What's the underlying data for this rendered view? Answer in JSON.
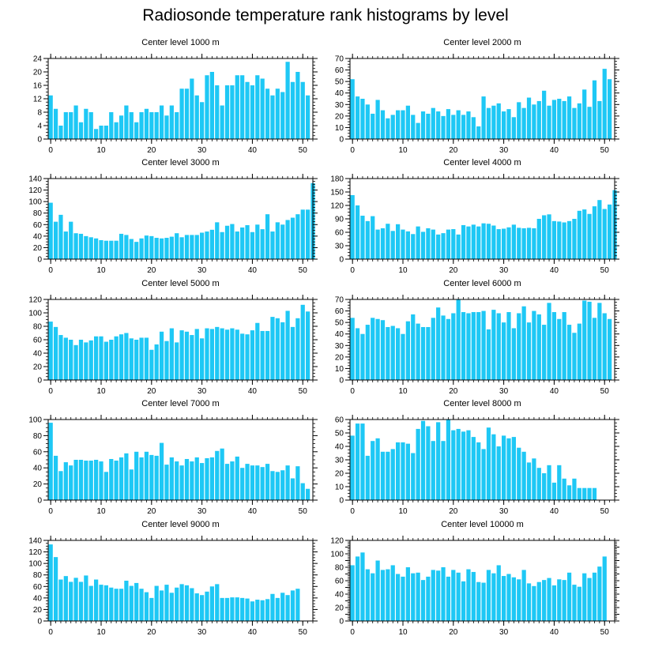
{
  "title": "Radiosonde temperature rank histograms by level",
  "colors": {
    "bar": "#1EC8F5",
    "axis": "#000000"
  },
  "chart_data": [
    {
      "type": "bar",
      "title": "Center level 1000 m",
      "xlim": [
        -0.5,
        52
      ],
      "ylim": [
        0,
        24
      ],
      "xticks": [
        0,
        10,
        20,
        30,
        40,
        50
      ],
      "yticks": [
        0,
        4,
        8,
        12,
        16,
        20,
        24
      ],
      "values": [
        13,
        9,
        4,
        8,
        8,
        10,
        5,
        9,
        8,
        3,
        4,
        4,
        8,
        5,
        7,
        10,
        8,
        5,
        8,
        9,
        8,
        8,
        10,
        7,
        10,
        8,
        15,
        15,
        18,
        13,
        11,
        19,
        20,
        16,
        10,
        16,
        16,
        19,
        19,
        17,
        16,
        19,
        18,
        15,
        13,
        15,
        14,
        23,
        17,
        20,
        17,
        13
      ]
    },
    {
      "type": "bar",
      "title": "Center level 2000 m",
      "xlim": [
        -0.5,
        52
      ],
      "ylim": [
        0,
        70
      ],
      "xticks": [
        0,
        10,
        20,
        30,
        40,
        50
      ],
      "yticks": [
        0,
        10,
        20,
        30,
        40,
        50,
        60,
        70
      ],
      "values": [
        52,
        37,
        35,
        30,
        22,
        34,
        25,
        18,
        21,
        25,
        25,
        29,
        21,
        14,
        24,
        22,
        27,
        24,
        20,
        26,
        21,
        25,
        21,
        24,
        19,
        11,
        37,
        27,
        29,
        31,
        24,
        26,
        19,
        32,
        27,
        36,
        30,
        33,
        42,
        29,
        34,
        35,
        33,
        37,
        27,
        31,
        43,
        28,
        51,
        33,
        61,
        52
      ]
    },
    {
      "type": "bar",
      "title": "Center level 3000 m",
      "xlim": [
        -0.5,
        52
      ],
      "ylim": [
        0,
        140
      ],
      "xticks": [
        0,
        10,
        20,
        30,
        40,
        50
      ],
      "yticks": [
        0,
        20,
        40,
        60,
        80,
        100,
        120,
        140
      ],
      "values": [
        98,
        65,
        77,
        48,
        65,
        45,
        44,
        40,
        38,
        36,
        33,
        32,
        32,
        32,
        44,
        42,
        35,
        30,
        36,
        41,
        40,
        37,
        36,
        37,
        39,
        45,
        38,
        42,
        42,
        42,
        46,
        48,
        51,
        64,
        47,
        58,
        61,
        48,
        55,
        59,
        47,
        60,
        52,
        78,
        48,
        64,
        60,
        68,
        72,
        78,
        86,
        86,
        132
      ]
    },
    {
      "type": "bar",
      "title": "Center level 4000 m",
      "xlim": [
        -0.5,
        52
      ],
      "ylim": [
        0,
        180
      ],
      "xticks": [
        0,
        10,
        20,
        30,
        40,
        50
      ],
      "yticks": [
        0,
        30,
        60,
        90,
        120,
        150,
        180
      ],
      "values": [
        143,
        120,
        97,
        85,
        96,
        66,
        69,
        79,
        63,
        78,
        66,
        62,
        56,
        73,
        61,
        69,
        66,
        55,
        58,
        66,
        67,
        55,
        76,
        73,
        77,
        73,
        80,
        79,
        75,
        67,
        68,
        71,
        77,
        70,
        69,
        70,
        69,
        90,
        98,
        100,
        85,
        84,
        82,
        85,
        90,
        108,
        111,
        101,
        118,
        132,
        112,
        122,
        154
      ]
    },
    {
      "type": "bar",
      "title": "Center level 5000 m",
      "xlim": [
        -0.5,
        52
      ],
      "ylim": [
        0,
        120
      ],
      "xticks": [
        0,
        10,
        20,
        30,
        40,
        50
      ],
      "yticks": [
        0,
        20,
        40,
        60,
        80,
        100,
        120
      ],
      "values": [
        87,
        79,
        67,
        63,
        60,
        52,
        60,
        56,
        59,
        65,
        65,
        57,
        60,
        65,
        68,
        70,
        62,
        60,
        63,
        63,
        45,
        53,
        72,
        58,
        77,
        56,
        74,
        72,
        67,
        76,
        62,
        77,
        76,
        79,
        77,
        75,
        77,
        75,
        69,
        68,
        74,
        85,
        73,
        73,
        94,
        92,
        86,
        103,
        79,
        92,
        112,
        102
      ]
    },
    {
      "type": "bar",
      "title": "Center level 6000 m",
      "xlim": [
        -0.5,
        52
      ],
      "ylim": [
        0,
        70
      ],
      "xticks": [
        0,
        10,
        20,
        30,
        40,
        50
      ],
      "yticks": [
        0,
        10,
        20,
        30,
        40,
        50,
        60,
        70
      ],
      "values": [
        54,
        45,
        40,
        48,
        54,
        53,
        52,
        46,
        47,
        45,
        40,
        51,
        57,
        49,
        46,
        46,
        54,
        63,
        56,
        53,
        58,
        70,
        59,
        58,
        59,
        59,
        60,
        44,
        61,
        58,
        50,
        59,
        45,
        58,
        64,
        50,
        60,
        57,
        48,
        67,
        59,
        53,
        59,
        48,
        41,
        49,
        69,
        68,
        54,
        67,
        58,
        53
      ]
    },
    {
      "type": "bar",
      "title": "Center level 7000 m",
      "xlim": [
        -0.5,
        52
      ],
      "ylim": [
        0,
        100
      ],
      "xticks": [
        0,
        10,
        20,
        30,
        40,
        50
      ],
      "yticks": [
        0,
        20,
        40,
        60,
        80,
        100
      ],
      "values": [
        96,
        55,
        36,
        47,
        43,
        50,
        50,
        49,
        49,
        50,
        48,
        35,
        51,
        49,
        53,
        58,
        38,
        60,
        53,
        60,
        56,
        55,
        71,
        44,
        53,
        48,
        43,
        51,
        48,
        53,
        46,
        52,
        53,
        61,
        64,
        45,
        48,
        54,
        40,
        45,
        43,
        43,
        41,
        45,
        36,
        35,
        37,
        43,
        27,
        42,
        21,
        14
      ]
    },
    {
      "type": "bar",
      "title": "Center level 8000 m",
      "xlim": [
        -0.5,
        52
      ],
      "ylim": [
        0,
        60
      ],
      "xticks": [
        0,
        10,
        20,
        30,
        40,
        50
      ],
      "yticks": [
        0,
        10,
        20,
        30,
        40,
        50,
        60
      ],
      "values": [
        48,
        57,
        57,
        33,
        44,
        46,
        36,
        36,
        38,
        43,
        43,
        42,
        35,
        53,
        59,
        55,
        44,
        58,
        44,
        60,
        52,
        53,
        51,
        52,
        47,
        43,
        38,
        54,
        49,
        40,
        48,
        46,
        47,
        39,
        36,
        28,
        31,
        24,
        20,
        26,
        13,
        26,
        16,
        11,
        16,
        9,
        9,
        9,
        9
      ]
    },
    {
      "type": "bar",
      "title": "Center level 9000 m",
      "xlim": [
        -0.5,
        52
      ],
      "ylim": [
        0,
        140
      ],
      "xticks": [
        0,
        10,
        20,
        30,
        40,
        50
      ],
      "yticks": [
        0,
        20,
        40,
        60,
        80,
        100,
        120,
        140
      ],
      "values": [
        133,
        111,
        72,
        78,
        68,
        75,
        68,
        79,
        61,
        72,
        63,
        62,
        58,
        56,
        56,
        70,
        61,
        66,
        56,
        50,
        40,
        61,
        53,
        63,
        49,
        58,
        64,
        62,
        57,
        48,
        45,
        51,
        60,
        64,
        40,
        40,
        41,
        41,
        40,
        39,
        34,
        37,
        36,
        38,
        47,
        40,
        49,
        45,
        53,
        56
      ]
    },
    {
      "type": "bar",
      "title": "Center level 10000 m",
      "xlim": [
        -0.5,
        52
      ],
      "ylim": [
        0,
        120
      ],
      "xticks": [
        0,
        10,
        20,
        30,
        40,
        50
      ],
      "yticks": [
        0,
        10,
        20,
        30,
        40,
        50,
        60,
        70,
        80,
        90,
        100,
        110,
        120
      ],
      "ytick_labels": [
        "0",
        "",
        "20",
        "",
        "40",
        "",
        "60",
        "",
        "80",
        "",
        "100",
        "",
        "120"
      ],
      "values": [
        83,
        96,
        102,
        77,
        71,
        90,
        76,
        77,
        83,
        70,
        66,
        80,
        71,
        72,
        61,
        66,
        76,
        75,
        80,
        66,
        76,
        72,
        59,
        77,
        73,
        58,
        57,
        76,
        71,
        83,
        67,
        70,
        65,
        62,
        76,
        56,
        52,
        58,
        61,
        64,
        53,
        62,
        61,
        72,
        54,
        51,
        71,
        64,
        72,
        81,
        96
      ]
    }
  ]
}
